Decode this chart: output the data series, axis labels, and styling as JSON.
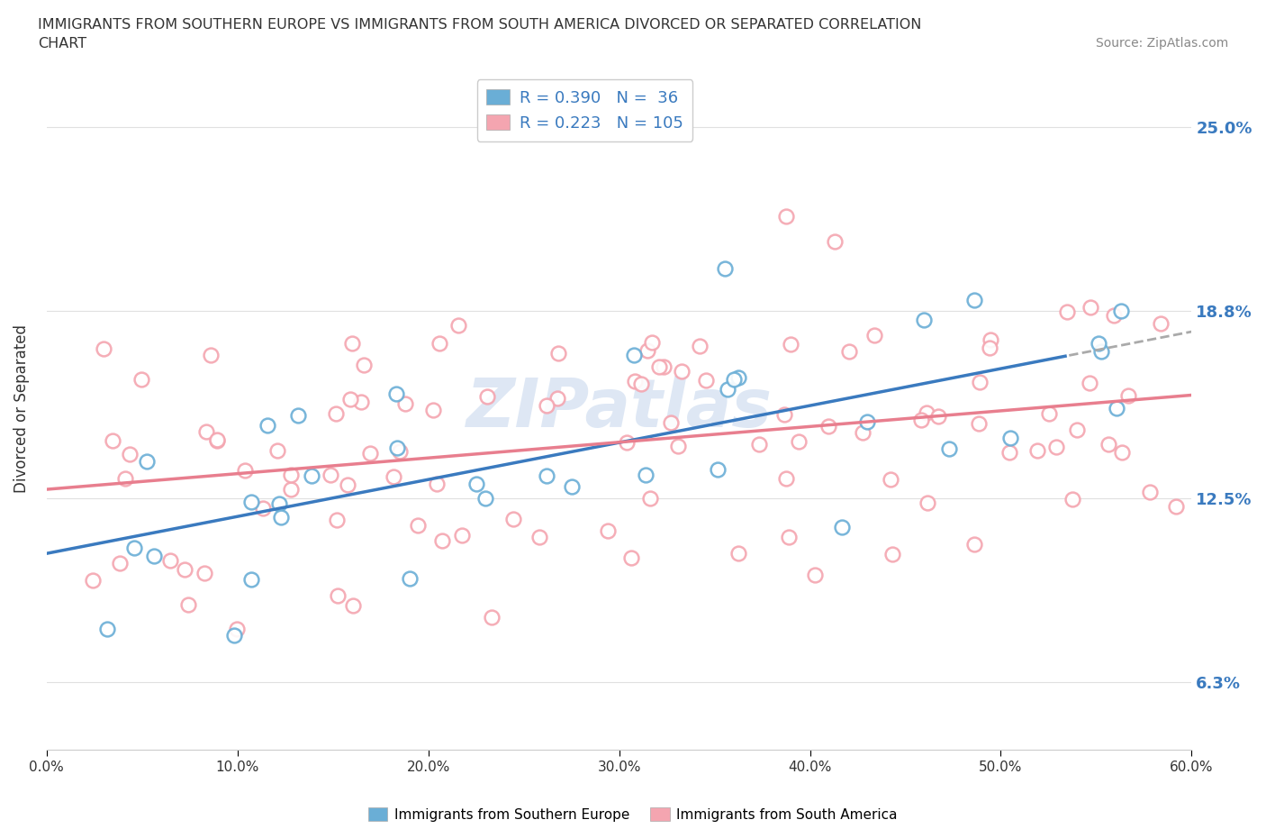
{
  "title_line1": "IMMIGRANTS FROM SOUTHERN EUROPE VS IMMIGRANTS FROM SOUTH AMERICA DIVORCED OR SEPARATED CORRELATION",
  "title_line2": "CHART",
  "source_text": "Source: ZipAtlas.com",
  "ylabel": "Divorced or Separated",
  "xlim": [
    0.0,
    0.6
  ],
  "ylim": [
    0.04,
    0.27
  ],
  "ytick_labels": [
    "6.3%",
    "12.5%",
    "18.8%",
    "25.0%"
  ],
  "ytick_positions": [
    0.063,
    0.125,
    0.188,
    0.25
  ],
  "blue_color": "#6aaed6",
  "pink_color": "#f4a5b0",
  "blue_line_color": "#3a7abf",
  "pink_line_color": "#e87e8e",
  "legend_R_blue": "R = 0.390",
  "legend_N_blue": "N =  36",
  "legend_R_pink": "R = 0.223",
  "legend_N_pink": "N = 105",
  "watermark": "ZIPatlas",
  "background_color": "#ffffff",
  "grid_color": "#e0e0e0",
  "right_tick_color": "#3a7abf",
  "title_color": "#333333",
  "source_color": "#888888"
}
